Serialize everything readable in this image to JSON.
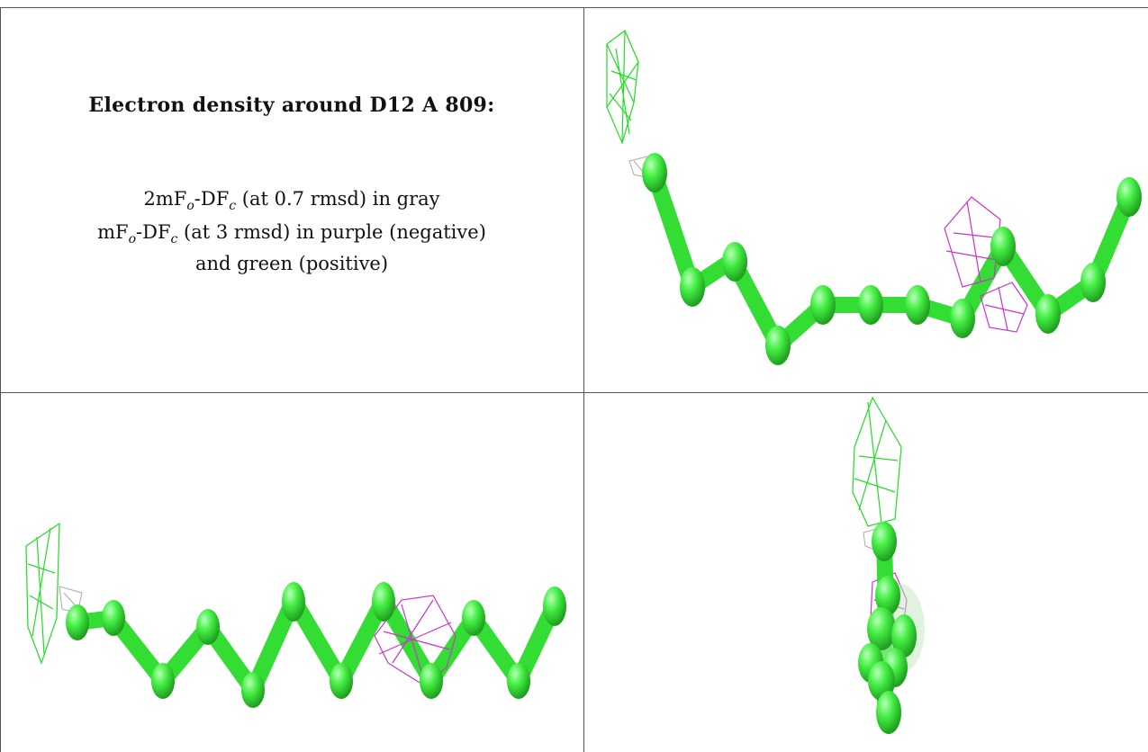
{
  "caption": {
    "title": "Electron density around D12 A 809:",
    "line1_prefix": "2mF",
    "line1_sub_o": "o",
    "line1_mid": "-DF",
    "line1_sub_c": "c",
    "line1_suffix": " (at 0.7 rmsd) in gray",
    "line2_prefix": "mF",
    "line2_sub_o": "o",
    "line2_mid": "-DF",
    "line2_sub_c": "c",
    "line2_suffix": " (at 3 rmsd) in purple (negative)",
    "line3": "and green (positive)"
  },
  "colors": {
    "carbon": "#3fe83f",
    "carbon_dark": "#22b322",
    "positive_mesh": "#22dd22",
    "negative_mesh": "#cc33cc",
    "gray_mesh": "#aaaaaa",
    "grid_line": "#555555"
  },
  "panels": [
    {
      "name": "view-1",
      "description_icon": "molecule-view-icon"
    },
    {
      "name": "view-2",
      "description_icon": "molecule-view-icon"
    },
    {
      "name": "view-3",
      "description_icon": "molecule-view-icon"
    }
  ]
}
